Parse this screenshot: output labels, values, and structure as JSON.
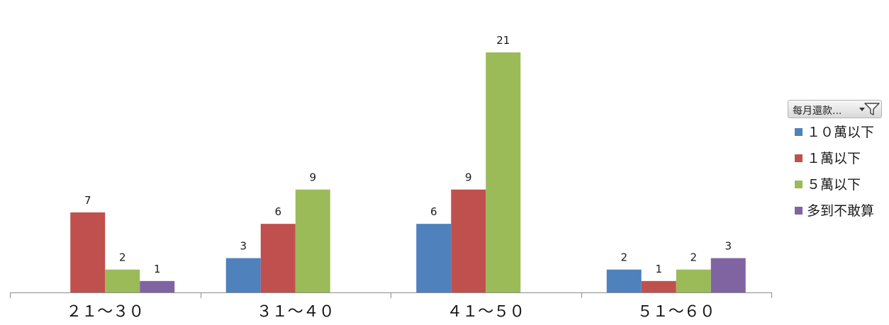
{
  "chart_data": {
    "type": "bar",
    "categories": [
      "２１～３０",
      "３１～４０",
      "４１～５０",
      "５１～６０"
    ],
    "series": [
      {
        "name": "１０萬以下",
        "color": "#4f81bd",
        "values": [
          null,
          3,
          6,
          2
        ]
      },
      {
        "name": "１萬以下",
        "color": "#c0504d",
        "values": [
          7,
          6,
          9,
          1
        ]
      },
      {
        "name": "５萬以下",
        "color": "#9bbb59",
        "values": [
          2,
          9,
          21,
          2
        ]
      },
      {
        "name": "多到不敢算",
        "color": "#8064a2",
        "values": [
          1,
          null,
          null,
          3
        ]
      }
    ],
    "ylim": [
      0,
      21
    ],
    "grid": false,
    "data_labels": true,
    "legend_position": "right"
  },
  "filter": {
    "label": "每月還款...",
    "icon": "filter-dropdown-icon"
  }
}
